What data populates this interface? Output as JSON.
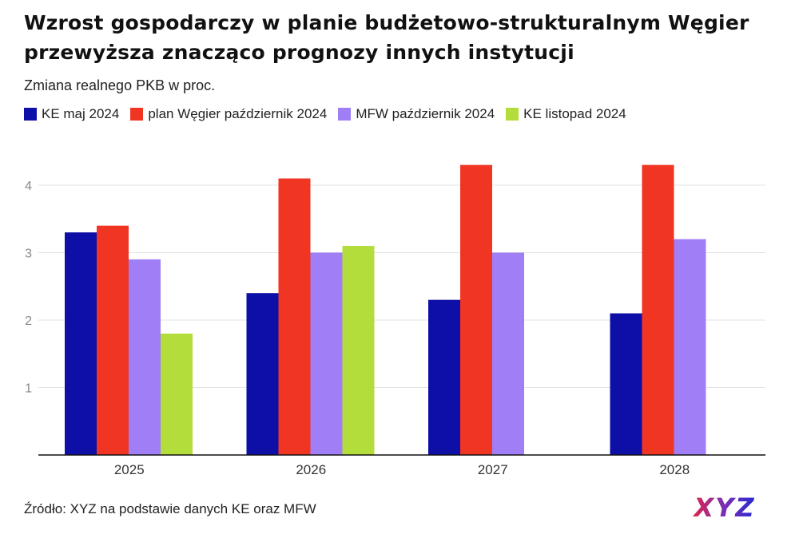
{
  "header": {
    "title": "Wzrost gospodarczy w planie budżetowo-strukturalnym Węgier przewyższa znacząco prognozy innych instytucji",
    "subtitle": "Zmiana realnego PKB w proc."
  },
  "legend": [
    {
      "label": "KE maj 2024",
      "color": "#0d0fa6"
    },
    {
      "label": "plan Węgier październik 2024",
      "color": "#f03523"
    },
    {
      "label": "MFW październik 2024",
      "color": "#a07ff6"
    },
    {
      "label": "KE listopad 2024",
      "color": "#b3dd3a"
    }
  ],
  "chart_data": {
    "type": "bar",
    "categories": [
      "2025",
      "2026",
      "2027",
      "2028"
    ],
    "series": [
      {
        "name": "KE maj 2024",
        "color": "#0d0fa6",
        "values": [
          3.3,
          2.4,
          2.3,
          2.1
        ]
      },
      {
        "name": "plan Węgier październik 2024",
        "color": "#f03523",
        "values": [
          3.4,
          4.1,
          4.3,
          4.3
        ]
      },
      {
        "name": "MFW październik 2024",
        "color": "#a07ff6",
        "values": [
          2.9,
          3.0,
          3.0,
          3.2
        ]
      },
      {
        "name": "KE listopad 2024",
        "color": "#b3dd3a",
        "values": [
          1.8,
          3.1,
          null,
          null
        ]
      }
    ],
    "yticks": [
      "1",
      "2",
      "3",
      "4"
    ],
    "ylim": [
      0,
      4.3
    ],
    "grid": true,
    "legend_position": "top-left"
  },
  "footer": {
    "source": "Źródło: XYZ na podstawie danych KE oraz MFW",
    "logo_text": "XYZ"
  }
}
